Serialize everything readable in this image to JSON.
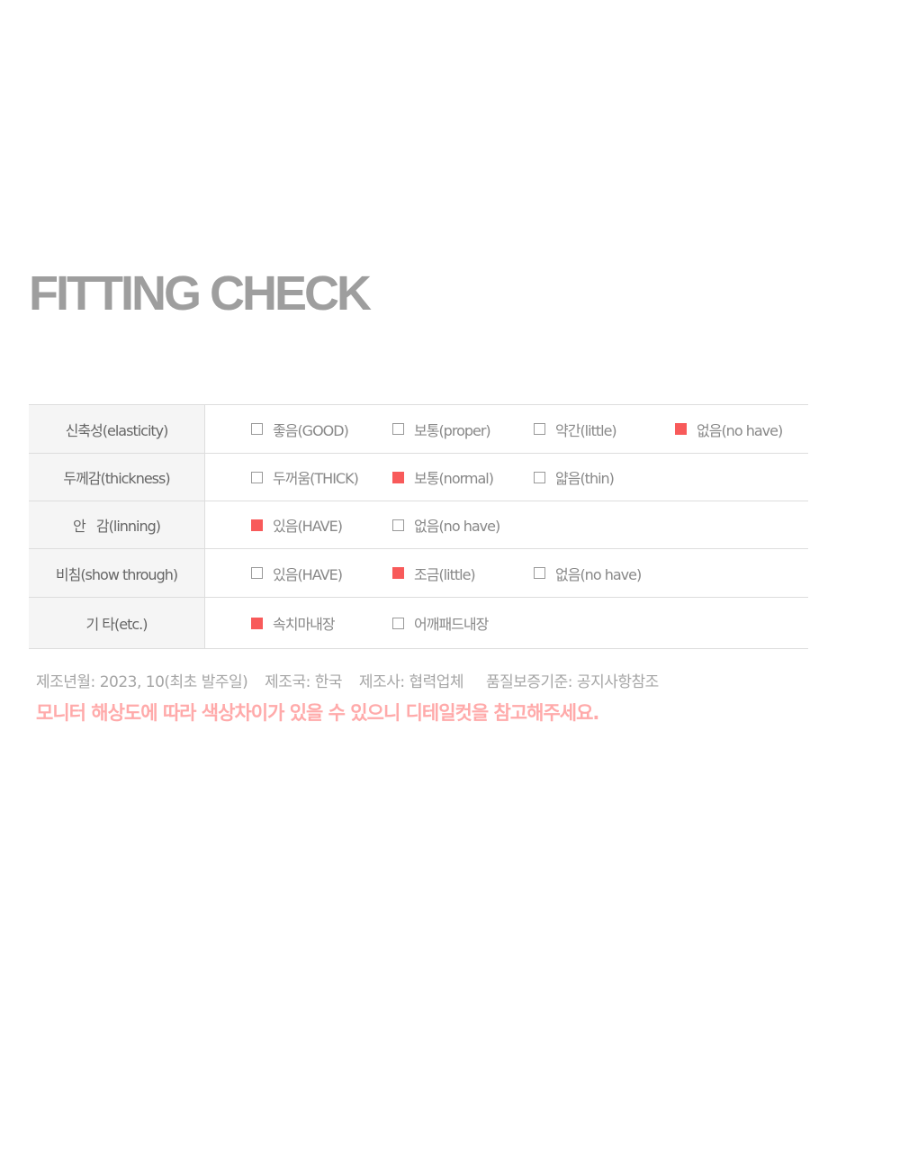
{
  "title": "FITTING CHECK",
  "checked_color": "#f85a5a",
  "rows": [
    {
      "label": "신축성(elasticity)",
      "options": [
        {
          "label": "좋음(GOOD)",
          "checked": false
        },
        {
          "label": "보통(proper)",
          "checked": false
        },
        {
          "label": "약간(little)",
          "checked": false
        },
        {
          "label": "없음(no have)",
          "checked": true
        }
      ]
    },
    {
      "label": "두께감(thickness)",
      "options": [
        {
          "label": "두꺼움(THICK)",
          "checked": false
        },
        {
          "label": "보통(normal)",
          "checked": true
        },
        {
          "label": "얇음(thin)",
          "checked": false
        }
      ]
    },
    {
      "label": "안   감(linning)",
      "options": [
        {
          "label": "있음(HAVE)",
          "checked": true
        },
        {
          "label": "없음(no have)",
          "checked": false
        }
      ]
    },
    {
      "label": "비침(show through)",
      "options": [
        {
          "label": "있음(HAVE)",
          "checked": false
        },
        {
          "label": "조금(little)",
          "checked": true
        },
        {
          "label": "없음(no have)",
          "checked": false
        }
      ]
    },
    {
      "label": "기 타(etc.)",
      "options": [
        {
          "label": "속치마내장",
          "checked": true
        },
        {
          "label": "어깨패드내장",
          "checked": false
        }
      ]
    }
  ],
  "info": {
    "manufacture_date": "제조년월: 2023, 10(최초 발주일)",
    "country": "제조국: 한국",
    "maker": "제조사: 협력업체",
    "quality": "품질보증기준: 공지사항참조"
  },
  "notice": "모니터 해상도에 따라 색상차이가 있을 수 있으니 디테일컷을 참고해주세요."
}
